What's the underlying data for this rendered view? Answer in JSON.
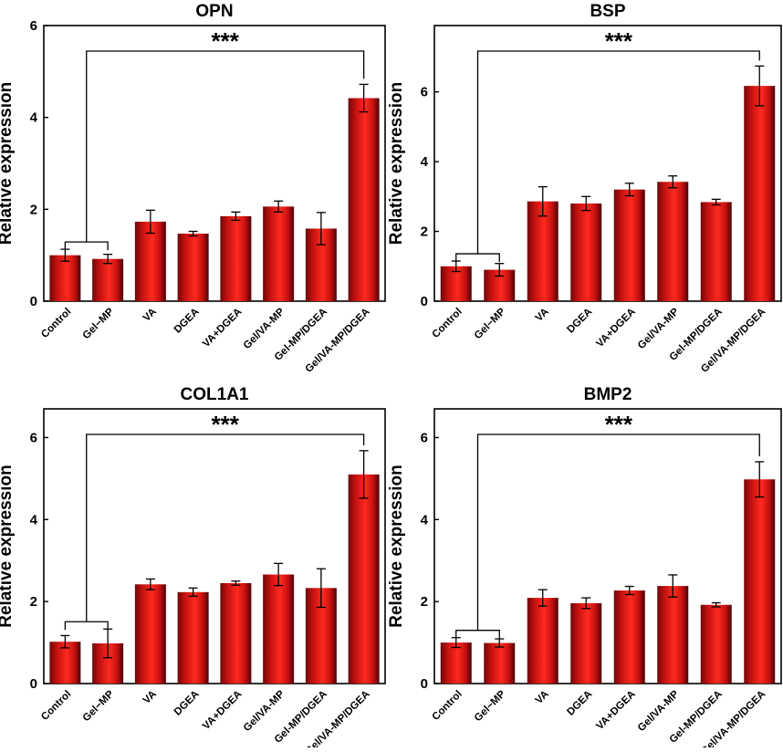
{
  "figure_caption": "",
  "chart_data": [
    {
      "type": "bar",
      "title": "OPN",
      "xlabel": "",
      "ylabel": "Relative expression",
      "ylim": [
        0,
        6
      ],
      "yticks": [
        0,
        2,
        4,
        6
      ],
      "categories": [
        "Control",
        "Gel−MP",
        "VA",
        "DGEA",
        "VA+DGEA",
        "Gel/VA-MP",
        "Gel-MP/DGEA",
        "Gel/VA-MP/DGEA"
      ],
      "values": [
        1.0,
        0.92,
        1.73,
        1.47,
        1.85,
        2.06,
        1.58,
        4.42
      ],
      "errors": [
        0.13,
        0.1,
        0.25,
        0.05,
        0.09,
        0.12,
        0.35,
        0.3
      ],
      "significance": "***",
      "color": "#d81414"
    },
    {
      "type": "bar",
      "title": "BSP",
      "xlabel": "",
      "ylabel": "Relative expression",
      "ylim": [
        0,
        7.9
      ],
      "yticks": [
        0,
        2,
        4,
        6
      ],
      "categories": [
        "Control",
        "Gel−MP",
        "VA",
        "DGEA",
        "VA+DGEA",
        "Gel/VA-MP",
        "Gel-MP/DGEA",
        "Gel/VA-MP/DGEA"
      ],
      "values": [
        1.0,
        0.9,
        2.86,
        2.8,
        3.2,
        3.42,
        2.84,
        6.17
      ],
      "errors": [
        0.15,
        0.18,
        0.42,
        0.2,
        0.18,
        0.17,
        0.08,
        0.57
      ],
      "significance": "***",
      "color": "#d81414"
    },
    {
      "type": "bar",
      "title": "COL1A1",
      "xlabel": "",
      "ylabel": "Relative expression",
      "ylim": [
        0,
        6.7
      ],
      "yticks": [
        0,
        2,
        4,
        6
      ],
      "categories": [
        "Control",
        "Gel−MP",
        "VA",
        "DGEA",
        "VA+DGEA",
        "Gel/VA-MP",
        "Gel-MP/DGEA",
        "Gel/VA-MP/DGEA"
      ],
      "values": [
        1.02,
        0.98,
        2.42,
        2.23,
        2.45,
        2.66,
        2.33,
        5.1
      ],
      "errors": [
        0.15,
        0.35,
        0.13,
        0.1,
        0.05,
        0.27,
        0.47,
        0.58
      ],
      "significance": "***",
      "color": "#d81414"
    },
    {
      "type": "bar",
      "title": "BMP2",
      "xlabel": "",
      "ylabel": "Relative expression",
      "ylim": [
        0,
        6.7
      ],
      "yticks": [
        0,
        2,
        4,
        6
      ],
      "categories": [
        "Control",
        "Gel−MP",
        "VA",
        "DGEA",
        "VA+DGEA",
        "Gel/VA-MP",
        "Gel-MP/DGEA",
        "Gel/VA-MP/DGEA"
      ],
      "values": [
        1.0,
        0.99,
        2.09,
        1.96,
        2.27,
        2.38,
        1.92,
        4.98
      ],
      "errors": [
        0.12,
        0.1,
        0.2,
        0.13,
        0.1,
        0.27,
        0.05,
        0.43
      ],
      "significance": "***",
      "color": "#d81414"
    }
  ]
}
